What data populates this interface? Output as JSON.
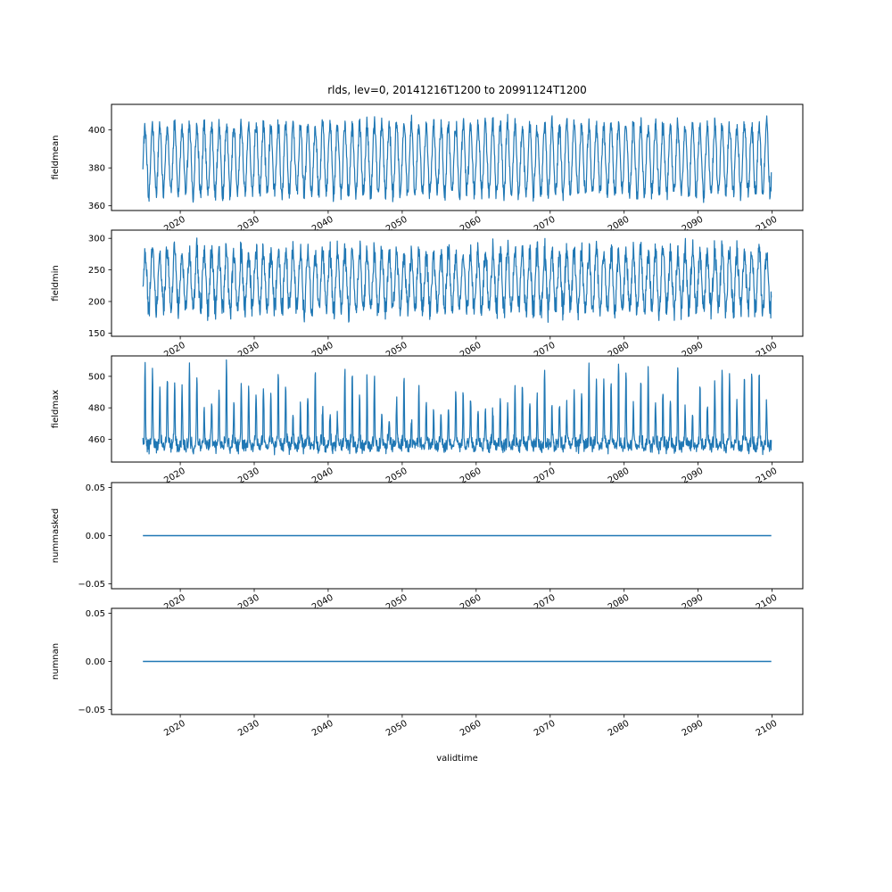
{
  "figure": {
    "title": "rlds, lev=0, 20141216T1200 to 20991124T1200",
    "xlabel": "validtime",
    "line_color": "#1f77b4",
    "background_color": "#ffffff",
    "xtick_values": [
      2020,
      2030,
      2040,
      2050,
      2060,
      2070,
      2080,
      2090,
      2100
    ],
    "xtick_labels": [
      "2020",
      "2030",
      "2040",
      "2050",
      "2060",
      "2070",
      "2080",
      "2090",
      "2100"
    ]
  },
  "chart_data": [
    {
      "type": "line",
      "name": "fieldmean",
      "ylabel": "fieldmean",
      "x_start": 2014.958,
      "x_end": 2099.899,
      "xlim": [
        2010.71,
        2104.15
      ],
      "ylim": [
        357.5,
        413.5
      ],
      "ytick_values": [
        360,
        380,
        400
      ],
      "ytick_labels": [
        "360",
        "380",
        "400"
      ],
      "summary": {
        "approx_min": 360,
        "approx_max": 411,
        "approx_mean": 384,
        "pattern": "dense annual oscillation between ~360 and ~410"
      },
      "signal": {
        "kind": "seasonal",
        "seed": 101,
        "points": 2040,
        "base": 384.5,
        "seasonal_amp": 18,
        "noise_amp": 6
      }
    },
    {
      "type": "line",
      "name": "fieldmin",
      "ylabel": "fieldmin",
      "x_start": 2014.958,
      "x_end": 2099.899,
      "xlim": [
        2010.71,
        2104.15
      ],
      "ylim": [
        145,
        313
      ],
      "ytick_values": [
        150,
        200,
        250,
        300
      ],
      "ytick_labels": [
        "150",
        "200",
        "250",
        "300"
      ],
      "summary": {
        "approx_min": 153,
        "approx_max": 308,
        "approx_mean": 233,
        "pattern": "very dense annual oscillation between ~160 and ~300"
      },
      "signal": {
        "kind": "seasonal",
        "seed": 202,
        "points": 2040,
        "base": 233,
        "seasonal_amp": 45,
        "noise_amp": 24
      }
    },
    {
      "type": "line",
      "name": "fieldmax",
      "ylabel": "fieldmax",
      "x_start": 2014.958,
      "x_end": 2099.899,
      "xlim": [
        2010.71,
        2104.15
      ],
      "ylim": [
        445.5,
        513
      ],
      "ytick_values": [
        460,
        480,
        500
      ],
      "ytick_labels": [
        "460",
        "480",
        "500"
      ],
      "summary": {
        "approx_min": 449,
        "approx_max": 510,
        "pattern": "noisy baseline around ~460 with thin annual upward spikes reaching 480-510"
      },
      "signal": {
        "kind": "spiky",
        "seed": 303,
        "points": 2040,
        "base": 457.5,
        "seasonal_amp": 2.5,
        "noise_amp": 5.5,
        "spike_threshold": 0.8,
        "spike_amp_min": 14,
        "spike_amp_max": 48
      }
    },
    {
      "type": "line",
      "name": "nummasked",
      "ylabel": "nummasked",
      "x_start": 2014.958,
      "x_end": 2099.899,
      "xlim": [
        2010.71,
        2104.15
      ],
      "ylim": [
        -0.055,
        0.055
      ],
      "ytick_values": [
        0.05,
        0.0,
        -0.05
      ],
      "ytick_labels": [
        "0.05",
        "0.00",
        "−0.05"
      ],
      "summary": {
        "constant_value": 0,
        "pattern": "flat line at 0"
      },
      "signal": {
        "kind": "constant",
        "value": 0
      }
    },
    {
      "type": "line",
      "name": "numnan",
      "ylabel": "numnan",
      "x_start": 2014.958,
      "x_end": 2099.899,
      "xlim": [
        2010.71,
        2104.15
      ],
      "ylim": [
        -0.055,
        0.055
      ],
      "ytick_values": [
        0.05,
        0.0,
        -0.05
      ],
      "ytick_labels": [
        "0.05",
        "0.00",
        "−0.05"
      ],
      "summary": {
        "constant_value": 0,
        "pattern": "flat line at 0"
      },
      "signal": {
        "kind": "constant",
        "value": 0
      }
    }
  ]
}
